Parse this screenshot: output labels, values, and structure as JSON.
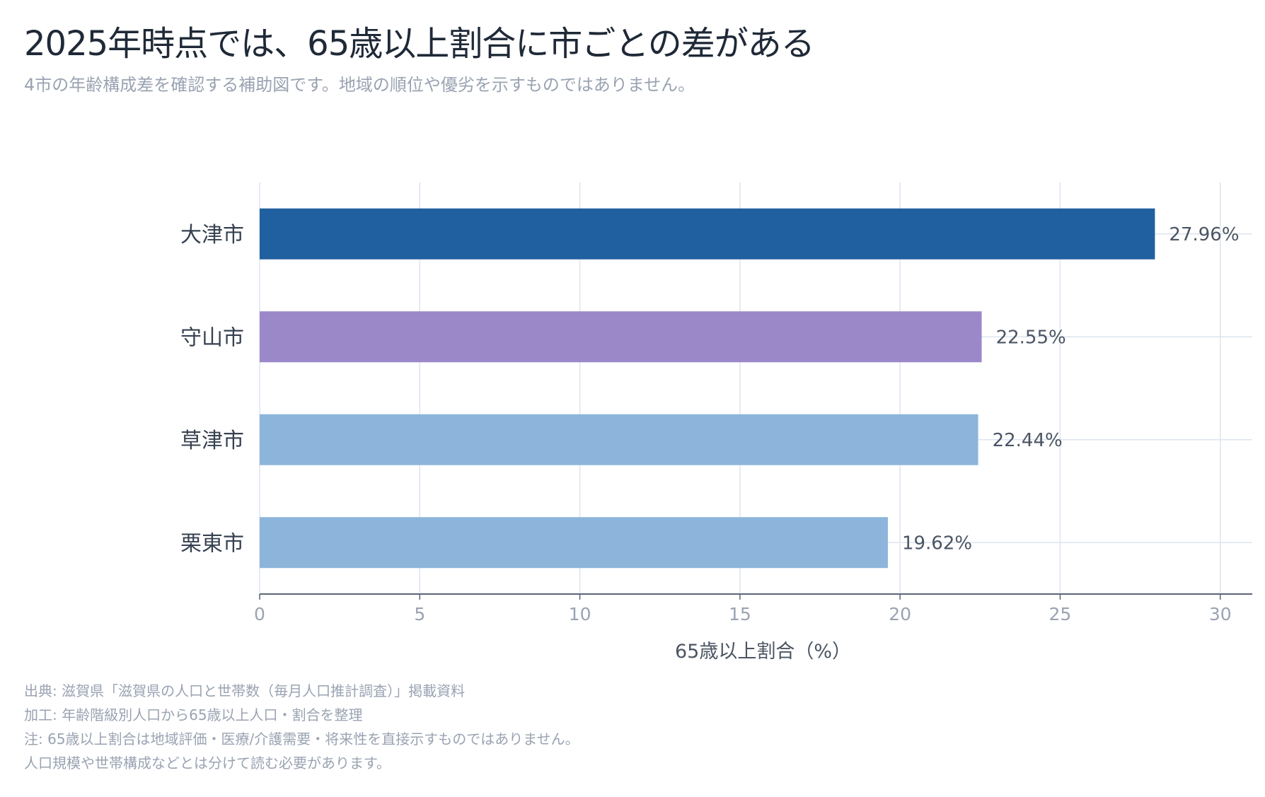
{
  "header": {
    "title": "2025年時点では、65歳以上割合に市ごとの差がある",
    "subtitle": "4市の年齢構成差を確認する補助図です。地域の順位や優劣を示すものではありません。"
  },
  "chart_data": {
    "type": "bar",
    "orientation": "horizontal",
    "categories": [
      "大津市",
      "守山市",
      "草津市",
      "栗東市"
    ],
    "values": [
      27.96,
      22.55,
      22.44,
      19.62
    ],
    "value_labels": [
      "27.96%",
      "22.55%",
      "22.44%",
      "19.62%"
    ],
    "colors": [
      "#2060a0",
      "#9b88c9",
      "#8db5dc",
      "#8db5dc"
    ],
    "xlabel": "65歳以上割合（%）",
    "ylabel": "",
    "xlim": [
      0,
      31
    ],
    "xticks": [
      0,
      5,
      10,
      15,
      20,
      25,
      30
    ],
    "grid": true
  },
  "footer": {
    "lines": [
      "出典: 滋賀県「滋賀県の人口と世帯数（毎月人口推計調査）」掲載資料",
      "加工: 年齢階級別人口から65歳以上人口・割合を整理",
      "注: 65歳以上割合は地域評価・医療/介護需要・将来性を直接示すものではありません。",
      "人口規模や世帯構成などとは分けて読む必要があります。"
    ]
  }
}
